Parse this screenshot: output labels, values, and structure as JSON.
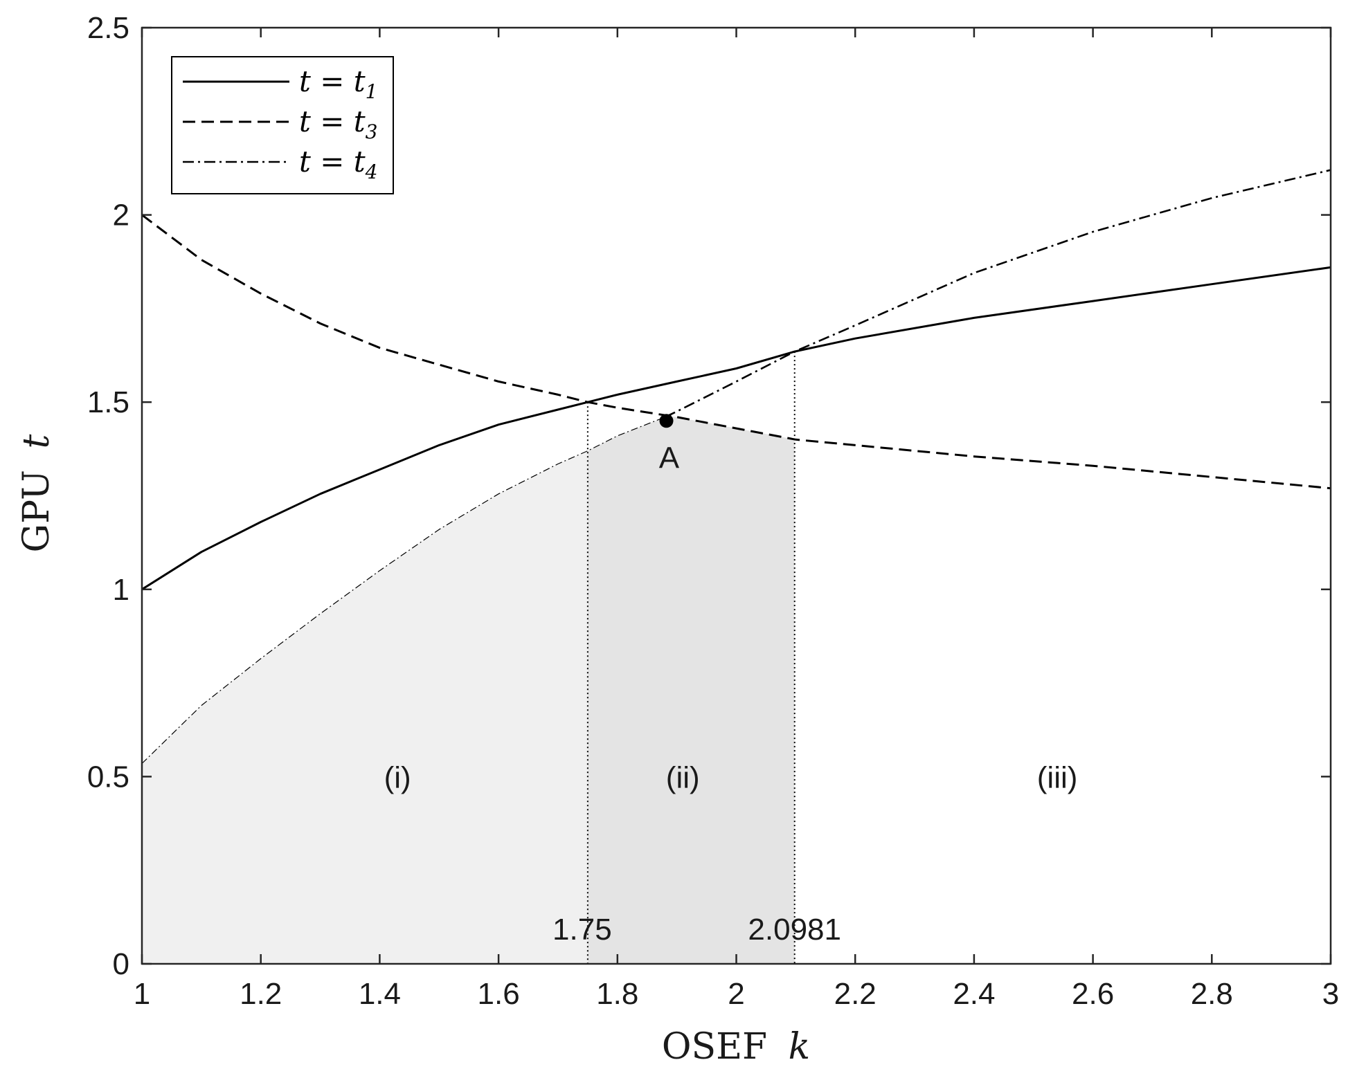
{
  "chart_data": {
    "type": "line",
    "xlabel": "OSEF",
    "xlabel_var": "k",
    "ylabel": "GPU",
    "ylabel_var": "t",
    "xlim": [
      1,
      3
    ],
    "ylim": [
      0,
      2.5
    ],
    "xticks": [
      1,
      1.2,
      1.4,
      1.6,
      1.8,
      2,
      2.2,
      2.4,
      2.6,
      2.8,
      3
    ],
    "xtick_labels": [
      "1",
      "1.2",
      "1.4",
      "1.6",
      "1.8",
      "2",
      "2.2",
      "2.4",
      "2.6",
      "2.8",
      "3"
    ],
    "yticks": [
      0,
      0.5,
      1,
      1.5,
      2,
      2.5
    ],
    "ytick_labels": [
      "0",
      "0.5",
      "1",
      "1.5",
      "2",
      "2.5"
    ],
    "grid": false,
    "legend_position": "top-left",
    "series": [
      {
        "name": "t = t1",
        "legend_lhs": "t = t",
        "legend_sub": "1",
        "style": "solid",
        "x": [
          1,
          1.1,
          1.2,
          1.3,
          1.4,
          1.5,
          1.6,
          1.7,
          1.75,
          1.8,
          1.9,
          2.0,
          2.0981,
          2.2,
          2.4,
          2.6,
          2.8,
          3.0
        ],
        "y": [
          1.0,
          1.1,
          1.18,
          1.255,
          1.32,
          1.385,
          1.44,
          1.48,
          1.5,
          1.52,
          1.555,
          1.59,
          1.635,
          1.67,
          1.725,
          1.77,
          1.815,
          1.86
        ]
      },
      {
        "name": "t = t3",
        "legend_lhs": "t = t",
        "legend_sub": "3",
        "style": "dashed",
        "x": [
          1,
          1.1,
          1.2,
          1.3,
          1.4,
          1.5,
          1.6,
          1.7,
          1.75,
          1.8,
          1.9,
          2.0,
          2.1,
          2.2,
          2.4,
          2.6,
          2.8,
          3.0
        ],
        "y": [
          2.0,
          1.88,
          1.79,
          1.71,
          1.645,
          1.6,
          1.555,
          1.52,
          1.5,
          1.485,
          1.46,
          1.43,
          1.4,
          1.385,
          1.355,
          1.33,
          1.3,
          1.27
        ]
      },
      {
        "name": "t = t4",
        "legend_lhs": "t = t",
        "legend_sub": "4",
        "style": "dashdot",
        "x": [
          1.88,
          1.9,
          2.0,
          2.0981,
          2.2,
          2.4,
          2.6,
          2.8,
          3.0
        ],
        "y": [
          1.46,
          1.475,
          1.555,
          1.635,
          1.705,
          1.845,
          1.955,
          2.045,
          2.12
        ]
      },
      {
        "name": "lower boundary",
        "legend": false,
        "style": "thin-dashdot",
        "x": [
          1.0,
          1.1,
          1.2,
          1.3,
          1.4,
          1.5,
          1.6,
          1.7,
          1.75,
          1.8,
          1.88
        ],
        "y": [
          0.535,
          0.69,
          0.815,
          0.935,
          1.05,
          1.16,
          1.255,
          1.335,
          1.37,
          1.41,
          1.46
        ]
      }
    ],
    "regions": [
      {
        "label": "(i)",
        "x_from": 1,
        "x_to": 1.75,
        "label_x": 1.43,
        "label_y": 0.5,
        "fill": "#f0f0f0"
      },
      {
        "label": "(ii)",
        "x_from": 1.75,
        "x_to": 2.0981,
        "label_x": 1.91,
        "label_y": 0.5,
        "fill": "#e4e4e4"
      },
      {
        "label": "(iii)",
        "x_from": 2.0981,
        "x_to": 3,
        "label_x": 2.54,
        "label_y": 0.5,
        "fill": "#ffffff"
      }
    ],
    "vlines": [
      {
        "x": 1.75,
        "label": "1.75"
      },
      {
        "x": 2.0981,
        "label": "2.0981"
      }
    ],
    "annotations": [
      {
        "label": "A",
        "x": 1.88,
        "y": 1.45
      }
    ]
  }
}
